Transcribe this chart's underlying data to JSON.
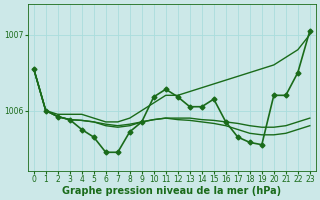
{
  "background_color": "#cce8e8",
  "plot_bg_color": "#cce8e8",
  "grid_color": "#aadddd",
  "line_color": "#1a6b1a",
  "xlabel": "Graphe pression niveau de la mer (hPa)",
  "ylim": [
    1005.2,
    1007.4
  ],
  "xlim": [
    -0.5,
    23.5
  ],
  "yticks": [
    1006,
    1007
  ],
  "xticks": [
    0,
    1,
    2,
    3,
    4,
    5,
    6,
    7,
    8,
    9,
    10,
    11,
    12,
    13,
    14,
    15,
    16,
    17,
    18,
    19,
    20,
    21,
    22,
    23
  ],
  "series": [
    {
      "name": "high_line",
      "y": [
        1006.55,
        1006.0,
        1005.95,
        1005.95,
        1005.95,
        1005.9,
        1005.85,
        1005.85,
        1005.9,
        1006.0,
        1006.1,
        1006.2,
        1006.2,
        1006.25,
        1006.3,
        1006.35,
        1006.4,
        1006.45,
        1006.5,
        1006.55,
        1006.6,
        1006.7,
        1006.8,
        1007.0
      ],
      "has_markers": false,
      "linewidth": 1.0
    },
    {
      "name": "flat_line",
      "y": [
        1006.55,
        1006.0,
        1005.92,
        1005.88,
        1005.87,
        1005.85,
        1005.82,
        1005.8,
        1005.82,
        1005.85,
        1005.88,
        1005.9,
        1005.9,
        1005.9,
        1005.88,
        1005.87,
        1005.85,
        1005.83,
        1005.8,
        1005.78,
        1005.78,
        1005.8,
        1005.85,
        1005.9
      ],
      "has_markers": false,
      "linewidth": 1.0
    },
    {
      "name": "mid_line",
      "y": [
        1006.55,
        1006.0,
        1005.92,
        1005.88,
        1005.87,
        1005.85,
        1005.8,
        1005.78,
        1005.8,
        1005.85,
        1005.88,
        1005.9,
        1005.88,
        1005.87,
        1005.85,
        1005.83,
        1005.8,
        1005.75,
        1005.7,
        1005.68,
        1005.68,
        1005.7,
        1005.75,
        1005.8
      ],
      "has_markers": false,
      "linewidth": 1.0
    },
    {
      "name": "zigzag_line",
      "y": [
        1006.55,
        1006.0,
        1005.92,
        1005.88,
        1005.75,
        1005.65,
        1005.45,
        1005.45,
        1005.72,
        1005.85,
        1006.18,
        1006.28,
        1006.18,
        1006.05,
        1006.05,
        1006.15,
        1005.85,
        1005.65,
        1005.58,
        1005.55,
        1006.2,
        1006.2,
        1006.5,
        1007.05
      ],
      "has_markers": true,
      "linewidth": 1.2
    }
  ],
  "marker": "D",
  "markersize": 2.5,
  "xlabel_fontsize": 7,
  "tick_fontsize": 5.5,
  "label_color": "#1a6b1a"
}
